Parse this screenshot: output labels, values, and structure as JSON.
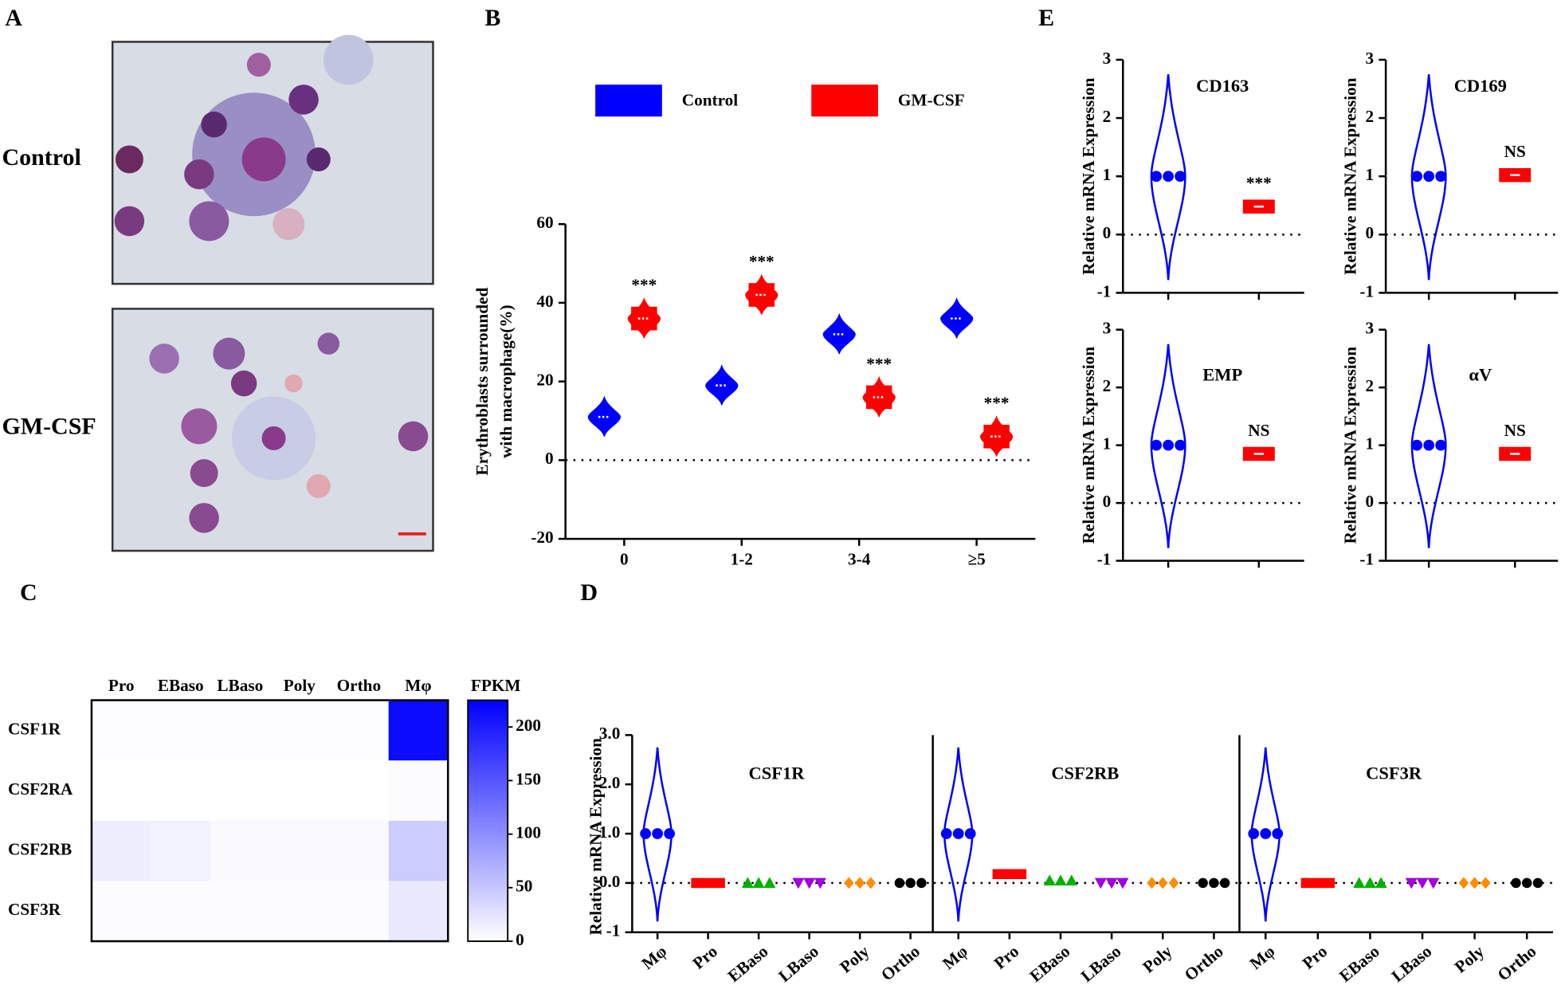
{
  "panel_labels": [
    "A",
    "B",
    "C",
    "D",
    "E"
  ],
  "micrographs": [
    "Control",
    "GM-CSF"
  ],
  "chart_data": [
    {
      "type": "violin",
      "categories": [
        "0",
        "1-2",
        "3-4",
        "≥5"
      ],
      "series": [
        {
          "name": "Control",
          "color": "#0000ff",
          "values": [
            11,
            19,
            32,
            36
          ]
        },
        {
          "name": "GM-CSF",
          "color": "#ff0000",
          "values": [
            36,
            42,
            16,
            6
          ],
          "annotations": [
            "***",
            "***",
            "***",
            "***"
          ]
        }
      ],
      "ylim": [
        -20,
        60
      ],
      "yticks": [
        -20,
        0,
        20,
        40,
        60
      ],
      "y_label": [
        "Erythroblasts surrounded",
        "with macrophage(%)"
      ],
      "reference_line": 0
    },
    {
      "type": "heatmap",
      "rows": [
        "CSF1R",
        "CSF2RA",
        "CSF2RB",
        "CSF3R"
      ],
      "columns": [
        "Pro",
        "EBaso",
        "LBaso",
        "Poly",
        "Ortho",
        "Mφ"
      ],
      "values": [
        [
          2,
          2,
          2,
          2,
          2,
          215
        ],
        [
          1,
          1,
          1,
          1,
          1,
          3
        ],
        [
          15,
          12,
          5,
          5,
          5,
          45
        ],
        [
          3,
          3,
          3,
          3,
          3,
          20
        ]
      ],
      "colorbar_title": "FPKM",
      "clim": [
        0,
        225
      ],
      "cticks": [
        0,
        50,
        100,
        150,
        200
      ],
      "color": "#0000ff"
    },
    {
      "type": "violin",
      "title": "CSF1R",
      "categories": [
        "Mφ",
        "Pro",
        "EBaso",
        "LBaso",
        "Poly",
        "Ortho"
      ],
      "values": [
        1,
        0,
        0,
        0,
        0,
        0
      ],
      "colors": [
        "#0000ff",
        "#ff0000",
        "#00b000",
        "#a000e0",
        "#ff8c00",
        "#000000"
      ],
      "ylim": [
        -1,
        3
      ],
      "yticks": [
        -1,
        {
          "value": 0,
          "label": "0.0"
        },
        {
          "value": 1,
          "label": "1.0"
        },
        {
          "value": 2,
          "label": "2.0"
        },
        {
          "value": 3,
          "label": "3.0"
        }
      ],
      "y_label": [
        "Relative mRNA Expression"
      ],
      "reference_line": 0
    },
    {
      "type": "violin",
      "title": "CSF2RB",
      "categories": [
        "Mφ",
        "Pro",
        "EBaso",
        "LBaso",
        "Poly",
        "Ortho"
      ],
      "values": [
        1,
        0.18,
        0.05,
        0,
        0,
        0
      ],
      "colors": [
        "#0000ff",
        "#ff0000",
        "#00b000",
        "#a000e0",
        "#ff8c00",
        "#000000"
      ],
      "ylim": [
        -1,
        3
      ],
      "reference_line": 0
    },
    {
      "type": "violin",
      "title": "CSF3R",
      "categories": [
        "Mφ",
        "Pro",
        "EBaso",
        "LBaso",
        "Poly",
        "Ortho"
      ],
      "values": [
        1,
        0,
        0,
        0,
        0,
        0
      ],
      "colors": [
        "#0000ff",
        "#ff0000",
        "#00b000",
        "#a000e0",
        "#ff8c00",
        "#000000"
      ],
      "ylim": [
        -1,
        3
      ],
      "reference_line": 0
    },
    {
      "type": "violin",
      "title": "CD163",
      "categories": [
        null,
        null
      ],
      "values": [
        1,
        0.48
      ],
      "colors": [
        "#0000ff",
        "#ff0000"
      ],
      "annotations": [
        null,
        "***"
      ],
      "ylim": [
        -1,
        3
      ],
      "yticks": [
        -1,
        0,
        1,
        2,
        3
      ],
      "y_label": [
        "Relative mRNA Expression"
      ],
      "reference_line": 0
    },
    {
      "type": "violin",
      "title": "CD169",
      "categories": [
        null,
        null
      ],
      "values": [
        1,
        1.02
      ],
      "colors": [
        "#0000ff",
        "#ff0000"
      ],
      "annotations": [
        null,
        "NS"
      ],
      "ylim": [
        -1,
        3
      ],
      "yticks": [
        -1,
        0,
        1,
        2,
        3
      ],
      "y_label": [
        "Relative mRNA Expression"
      ],
      "reference_line": 0
    },
    {
      "type": "violin",
      "title": "EMP",
      "categories": [
        null,
        null
      ],
      "values": [
        1,
        0.85
      ],
      "colors": [
        "#0000ff",
        "#ff0000"
      ],
      "annotations": [
        null,
        "NS"
      ],
      "ylim": [
        -1,
        3
      ],
      "yticks": [
        -1,
        0,
        1,
        2,
        3
      ],
      "y_label": [
        "Relative mRNA Expression"
      ],
      "reference_line": 0
    },
    {
      "type": "violin",
      "title": "αV",
      "categories": [
        null,
        null
      ],
      "values": [
        1,
        0.85
      ],
      "colors": [
        "#0000ff",
        "#ff0000"
      ],
      "annotations": [
        null,
        "NS"
      ],
      "ylim": [
        -1,
        3
      ],
      "yticks": [
        -1,
        0,
        1,
        2,
        3
      ],
      "y_label": [
        "Relative mRNA Expression"
      ],
      "reference_line": 0
    }
  ]
}
